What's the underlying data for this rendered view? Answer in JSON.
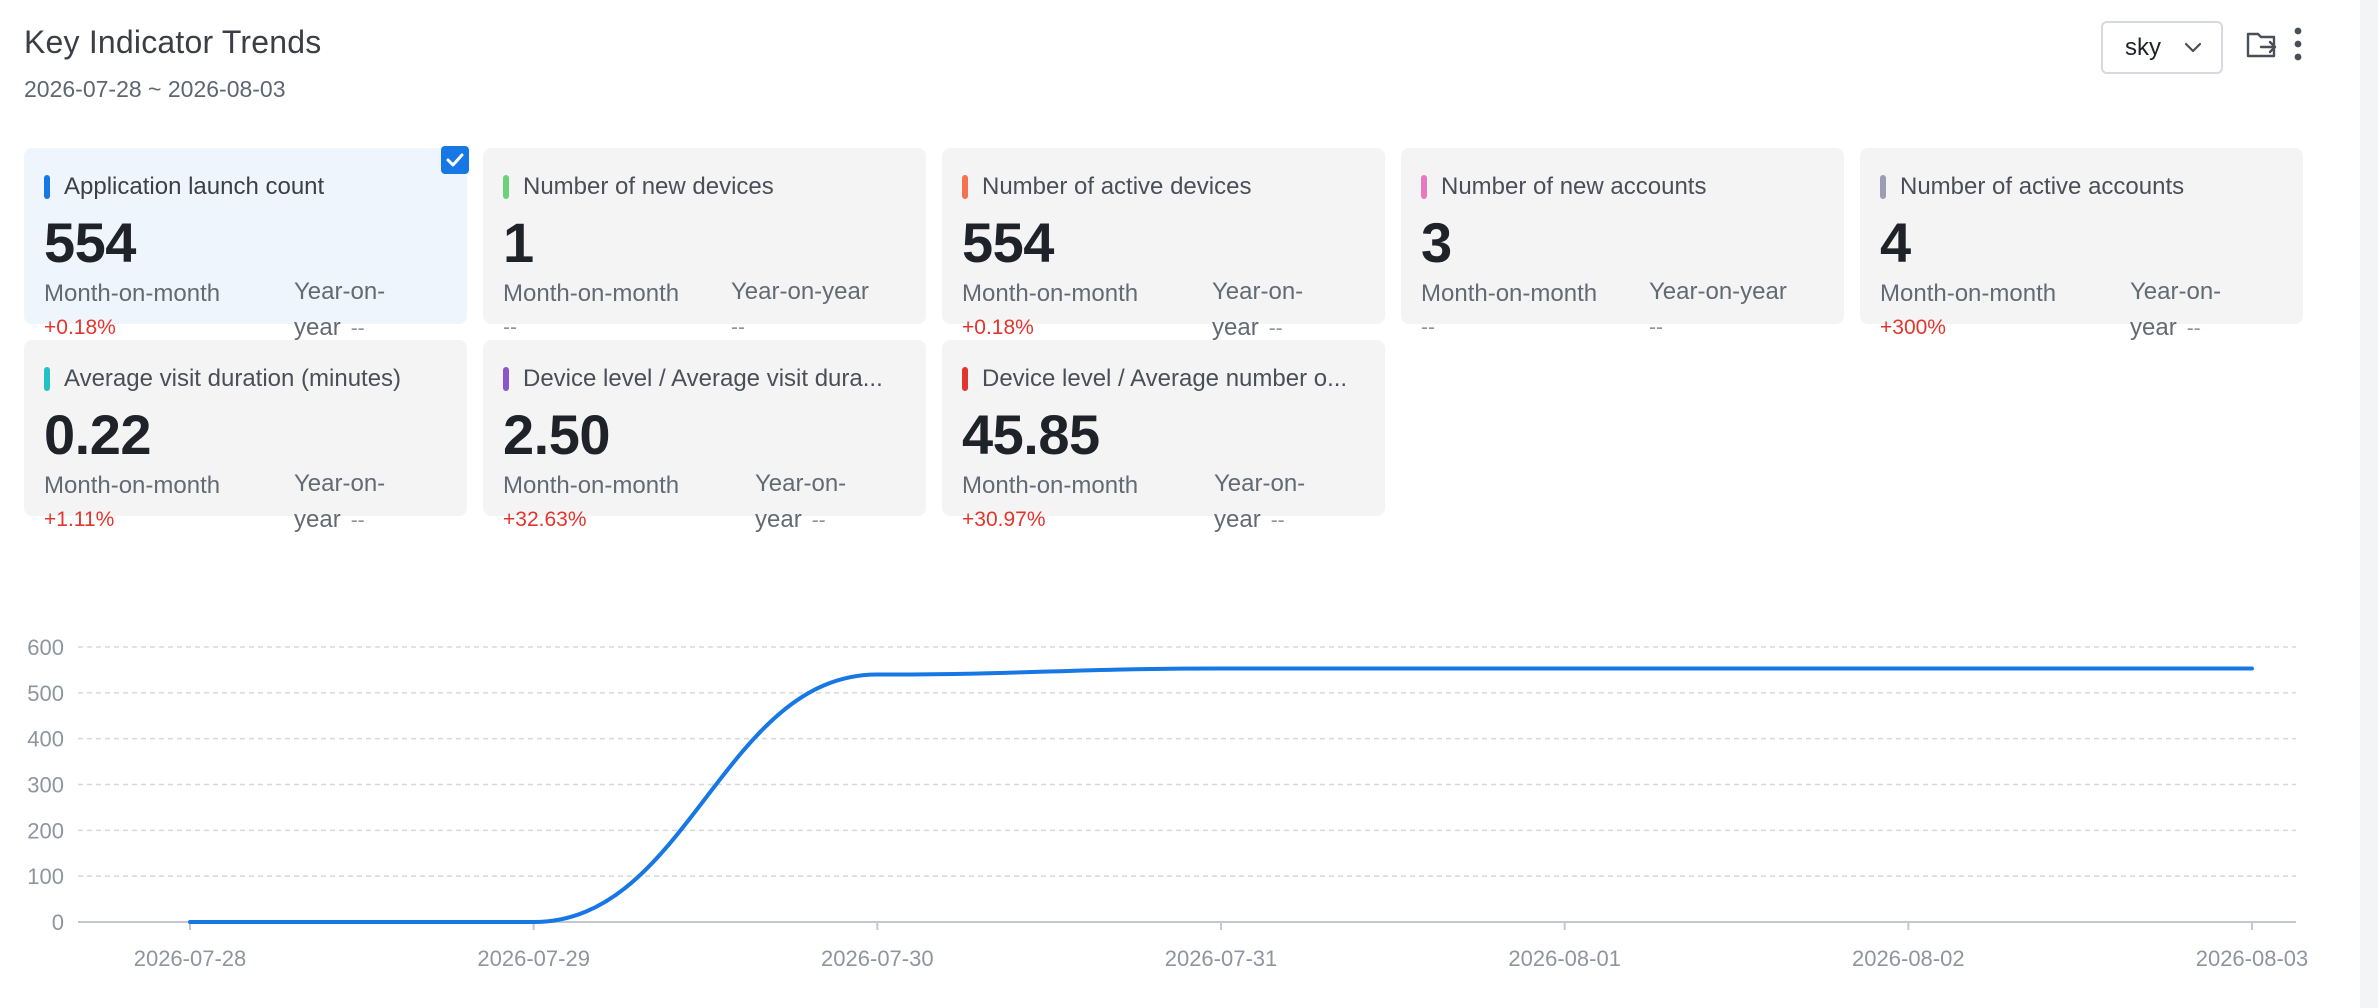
{
  "header": {
    "title": "Key Indicator Trends",
    "date_range": "2026-07-28 ~ 2026-08-03",
    "dropdown_value": "sky",
    "export_icon": "export-folder-icon",
    "more_icon": "more-vertical-icon"
  },
  "cards": [
    {
      "label": "Application launch count",
      "value": "554",
      "mom_label": "Month-on-month",
      "mom_value": "+0.18%",
      "yoy_label": "Year-on-year",
      "yoy_value": "--",
      "color": "#1677e5",
      "selected": true
    },
    {
      "label": "Number of new devices",
      "value": "1",
      "mom_label": "Month-on-month",
      "mom_value": "--",
      "yoy_label": "Year-on-year",
      "yoy_value": "--",
      "color": "#6dd07a",
      "selected": false
    },
    {
      "label": "Number of active devices",
      "value": "554",
      "mom_label": "Month-on-month",
      "mom_value": "+0.18%",
      "yoy_label": "Year-on-year",
      "yoy_value": "--",
      "color": "#f4724f",
      "selected": false
    },
    {
      "label": "Number of new accounts",
      "value": "3",
      "mom_label": "Month-on-month",
      "mom_value": "--",
      "yoy_label": "Year-on-year",
      "yoy_value": "--",
      "color": "#e879c0",
      "selected": false
    },
    {
      "label": "Number of active accounts",
      "value": "4",
      "mom_label": "Month-on-month",
      "mom_value": "+300%",
      "yoy_label": "Year-on-year",
      "yoy_value": "--",
      "color": "#9b9db5",
      "selected": false
    },
    {
      "label": "Average visit duration (minutes)",
      "value": "0.22",
      "mom_label": "Month-on-month",
      "mom_value": "+1.11%",
      "yoy_label": "Year-on-year",
      "yoy_value": "--",
      "color": "#22c1c3",
      "selected": false
    },
    {
      "label": "Device level / Average visit dura...",
      "value": "2.50",
      "mom_label": "Month-on-month",
      "mom_value": "+32.63%",
      "yoy_label": "Year-on-year",
      "yoy_value": "--",
      "color": "#8b57c9",
      "selected": false
    },
    {
      "label": "Device level / Average number o...",
      "value": "45.85",
      "mom_label": "Month-on-month",
      "mom_value": "+30.97%",
      "yoy_label": "Year-on-year",
      "yoy_value": "--",
      "color": "#e2352e",
      "selected": false
    }
  ],
  "chart_data": {
    "type": "line",
    "title": "",
    "xlabel": "",
    "ylabel": "",
    "x": [
      "2026-07-28",
      "2026-07-29",
      "2026-07-30",
      "2026-07-31",
      "2026-08-01",
      "2026-08-02",
      "2026-08-03"
    ],
    "series": [
      {
        "values": [
          0,
          0,
          540,
          553,
          553,
          553,
          553
        ],
        "color": "#1677e5"
      }
    ],
    "ylim": [
      0,
      600
    ],
    "yticks": [
      0,
      100,
      200,
      300,
      400,
      500,
      600
    ],
    "grid": true,
    "line_shape": "smooth"
  }
}
